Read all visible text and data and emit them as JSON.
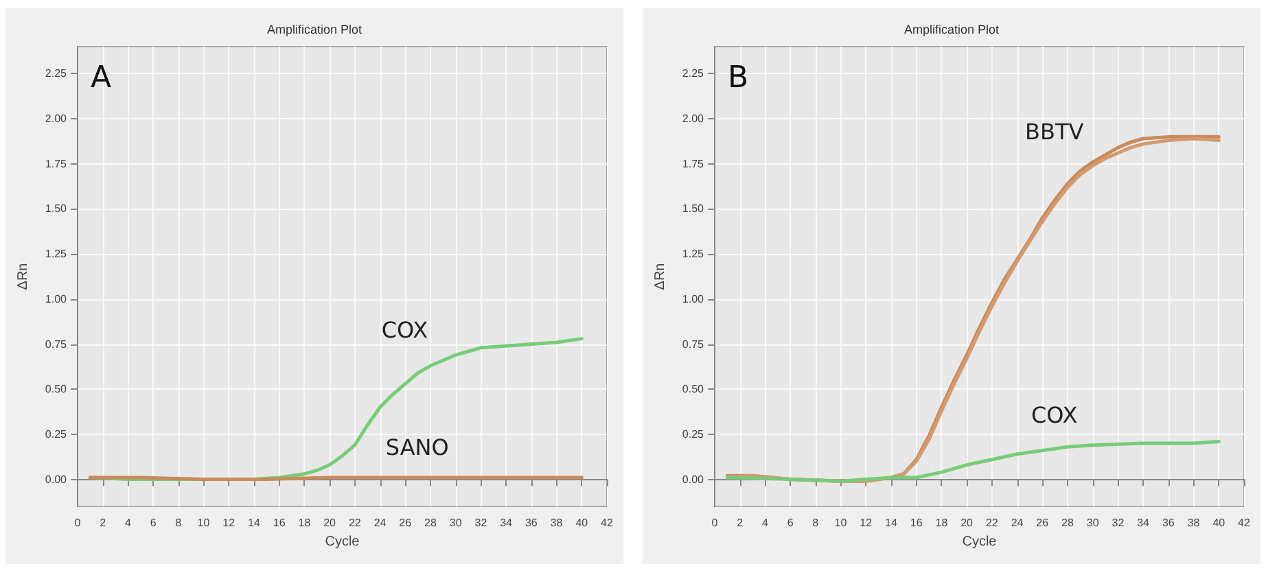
{
  "chart_data": [
    {
      "type": "line",
      "title": "Amplification Plot",
      "xlabel": "Cycle",
      "ylabel": "ΔRn",
      "xlim": [
        0,
        42
      ],
      "xticks": [
        0,
        2,
        4,
        6,
        8,
        10,
        12,
        14,
        16,
        18,
        20,
        22,
        24,
        26,
        28,
        30,
        32,
        34,
        36,
        38,
        40,
        42
      ],
      "ylim": [
        -0.15,
        2.4
      ],
      "yticks": [
        {
          "value": 0,
          "label": "0.00"
        },
        {
          "value": 0.25,
          "label": "0.25"
        },
        {
          "value": 0.5,
          "label": "0.50"
        },
        {
          "value": 0.75,
          "label": "0.75"
        },
        {
          "value": 1,
          "label": "1.00"
        },
        {
          "value": 1.25,
          "label": "1.25"
        },
        {
          "value": 1.5,
          "label": "1.50"
        },
        {
          "value": 1.75,
          "label": "1.75"
        },
        {
          "value": 2,
          "label": "2.00"
        },
        {
          "value": 2.25,
          "label": "2.25"
        }
      ],
      "grid": true,
      "marker": "none",
      "line_style": "solid",
      "series": [
        {
          "name": "COX",
          "color": "#78cc78",
          "x": [
            1,
            4,
            8,
            12,
            14,
            16,
            17,
            18,
            19,
            20,
            21,
            22,
            23,
            24,
            25,
            26,
            27,
            28,
            29,
            30,
            32,
            34,
            36,
            38,
            40
          ],
          "values": [
            0.01,
            0,
            0,
            0,
            0,
            0.01,
            0.02,
            0.03,
            0.05,
            0.08,
            0.13,
            0.19,
            0.3,
            0.4,
            0.47,
            0.53,
            0.59,
            0.63,
            0.66,
            0.69,
            0.73,
            0.74,
            0.75,
            0.76,
            0.78
          ]
        },
        {
          "name": "SANO",
          "color": "#c98a5c",
          "x": [
            1,
            5,
            10,
            15,
            20,
            25,
            30,
            35,
            40
          ],
          "values": [
            0.01,
            0.01,
            0,
            0,
            0.01,
            0.01,
            0.01,
            0.01,
            0.01
          ]
        }
      ],
      "annotations": [
        "A"
      ]
    },
    {
      "type": "line",
      "title": "Amplification Plot",
      "xlabel": "Cycle",
      "ylabel": "ΔRn",
      "xlim": [
        0,
        42
      ],
      "xticks": [
        0,
        2,
        4,
        6,
        8,
        10,
        12,
        14,
        16,
        18,
        20,
        22,
        24,
        26,
        28,
        30,
        32,
        34,
        36,
        38,
        40,
        42
      ],
      "ylim": [
        -0.15,
        2.4
      ],
      "yticks": [
        {
          "value": 0,
          "label": "0.00"
        },
        {
          "value": 0.25,
          "label": "0.25"
        },
        {
          "value": 0.5,
          "label": "0.50"
        },
        {
          "value": 0.75,
          "label": "0.75"
        },
        {
          "value": 1,
          "label": "1.00"
        },
        {
          "value": 1.25,
          "label": "1.25"
        },
        {
          "value": 1.5,
          "label": "1.50"
        },
        {
          "value": 1.75,
          "label": "1.75"
        },
        {
          "value": 2,
          "label": "2.00"
        },
        {
          "value": 2.25,
          "label": "2.25"
        }
      ],
      "grid": true,
      "marker": "none",
      "line_style": "solid",
      "series": [
        {
          "name": "BBTV",
          "color": "#c98a5c",
          "x": [
            1,
            3,
            6,
            10,
            12,
            14,
            15,
            16,
            17,
            18,
            19,
            20,
            21,
            22,
            23,
            24,
            25,
            26,
            27,
            28,
            29,
            30,
            31,
            32,
            33,
            34,
            36,
            38,
            40
          ],
          "values": [
            0.02,
            0.02,
            0,
            -0.01,
            -0.01,
            0.01,
            0.03,
            0.11,
            0.24,
            0.4,
            0.55,
            0.69,
            0.84,
            0.98,
            1.11,
            1.22,
            1.33,
            1.45,
            1.55,
            1.64,
            1.71,
            1.76,
            1.8,
            1.84,
            1.87,
            1.89,
            1.9,
            1.9,
            1.9
          ]
        },
        {
          "color": "#d49a70",
          "x": [
            1,
            3,
            6,
            10,
            12,
            14,
            15,
            16,
            17,
            18,
            19,
            20,
            21,
            22,
            23,
            24,
            25,
            26,
            27,
            28,
            29,
            30,
            31,
            32,
            33,
            34,
            36,
            38,
            40
          ],
          "values": [
            0.01,
            0.02,
            0,
            -0.01,
            -0.01,
            0.01,
            0.03,
            0.1,
            0.22,
            0.38,
            0.53,
            0.67,
            0.82,
            0.96,
            1.09,
            1.21,
            1.32,
            1.43,
            1.53,
            1.62,
            1.69,
            1.74,
            1.78,
            1.81,
            1.84,
            1.86,
            1.88,
            1.89,
            1.88
          ]
        },
        {
          "name": "COX",
          "color": "#78cc78",
          "x": [
            1,
            6,
            10,
            14,
            16,
            18,
            20,
            22,
            24,
            26,
            28,
            30,
            34,
            38,
            40
          ],
          "values": [
            0.01,
            0,
            -0.01,
            0.01,
            0.01,
            0.04,
            0.08,
            0.11,
            0.14,
            0.16,
            0.18,
            0.19,
            0.2,
            0.2,
            0.21
          ]
        }
      ],
      "annotations": [
        "B"
      ]
    }
  ]
}
